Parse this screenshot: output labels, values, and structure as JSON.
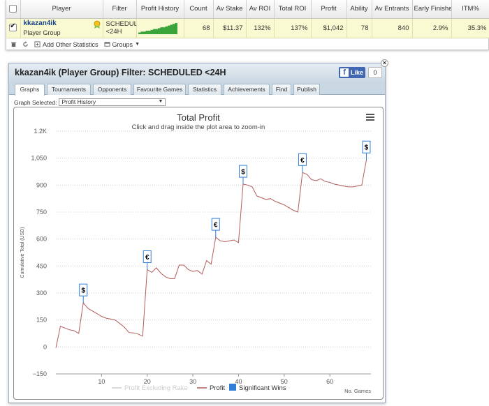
{
  "grid": {
    "columns": [
      "Player",
      "Filter",
      "Profit History",
      "Count",
      "Av Stake",
      "Av ROI",
      "Total ROI",
      "Profit",
      "Ability",
      "Av Entrants",
      "Early Finishes",
      "ITM%"
    ],
    "row": {
      "player": "kkazan4ik",
      "player_sub": "Player Group",
      "filter_line1": "SCHEDULE",
      "filter_line2": "<24H",
      "sparkline": [
        2,
        3,
        3,
        4,
        4,
        5,
        6,
        6,
        7,
        8,
        8,
        9,
        10,
        11,
        12,
        13
      ],
      "count": "68",
      "av_stake": "$11.37",
      "av_roi": "132%",
      "total_roi": "137%",
      "profit": "$1,042",
      "ability": "78",
      "av_entrants": "840",
      "early_finishes": "2.9%",
      "itm": "35.3%"
    }
  },
  "toolbar": {
    "add_stats": "Add Other Statistics",
    "groups": "Groups"
  },
  "panel": {
    "title": "kkazan4ik (Player Group) Filter: SCHEDULED <24H",
    "fb_like": "Like",
    "fb_count": "0",
    "close": "×",
    "tabs": [
      "Graphs",
      "Tournaments",
      "Opponents",
      "Favourite Games",
      "Statistics",
      "Achievements",
      "Find",
      "Publish"
    ],
    "graph_selected_label": "Graph Selected:",
    "graph_selected_value": "Profit History"
  },
  "chart_data": {
    "type": "line",
    "title": "Total Profit",
    "subtitle": "Click and drag inside the plot area to zoom-in",
    "xlabel": "No. Games",
    "ylabel": "Cumulative Total (USD)",
    "xlim": [
      0,
      69
    ],
    "ylim": [
      -150,
      1200
    ],
    "yticks": [
      -150,
      0,
      150,
      300,
      450,
      600,
      750,
      900,
      1050,
      1200
    ],
    "ytick_labels": [
      "−150",
      "0",
      "150",
      "300",
      "450",
      "600",
      "750",
      "900",
      "1,050",
      "1.2K"
    ],
    "xticks": [
      10,
      20,
      30,
      40,
      50,
      60
    ],
    "series": [
      {
        "name": "Profit Excluding Rake",
        "color": "#cccccc",
        "visible": false,
        "x": [],
        "y": []
      },
      {
        "name": "Profit",
        "color": "#b45a5a",
        "x": [
          0,
          1,
          2,
          3,
          4,
          5,
          6,
          7,
          8,
          9,
          10,
          11,
          12,
          13,
          14,
          15,
          16,
          17,
          18,
          19,
          20,
          21,
          22,
          23,
          24,
          25,
          26,
          27,
          28,
          29,
          30,
          31,
          32,
          33,
          34,
          35,
          36,
          37,
          38,
          39,
          40,
          41,
          42,
          43,
          44,
          45,
          46,
          47,
          48,
          49,
          50,
          51,
          52,
          53,
          54,
          55,
          56,
          57,
          58,
          59,
          60,
          61,
          62,
          63,
          64,
          65,
          66,
          67,
          68
        ],
        "y": [
          -5,
          115,
          105,
          95,
          90,
          75,
          245,
          215,
          200,
          185,
          170,
          160,
          155,
          150,
          130,
          110,
          80,
          78,
          72,
          60,
          430,
          415,
          440,
          410,
          390,
          380,
          380,
          455,
          455,
          430,
          420,
          425,
          405,
          480,
          460,
          610,
          590,
          585,
          590,
          595,
          580,
          905,
          900,
          890,
          840,
          830,
          820,
          825,
          810,
          800,
          790,
          775,
          760,
          750,
          970,
          960,
          930,
          925,
          935,
          920,
          915,
          905,
          900,
          895,
          890,
          890,
          895,
          900,
          1040
        ]
      },
      {
        "name": "Significant Wins",
        "color": "#2f7ed8",
        "type": "flags"
      }
    ],
    "flags": [
      {
        "x": 6,
        "y": 245,
        "label": "$"
      },
      {
        "x": 20,
        "y": 430,
        "label": "€"
      },
      {
        "x": 35,
        "y": 610,
        "label": "€"
      },
      {
        "x": 41,
        "y": 905,
        "label": "$"
      },
      {
        "x": 54,
        "y": 970,
        "label": "€"
      },
      {
        "x": 68,
        "y": 1040,
        "label": "$"
      }
    ],
    "legend": "bottom-center",
    "grid": true
  }
}
